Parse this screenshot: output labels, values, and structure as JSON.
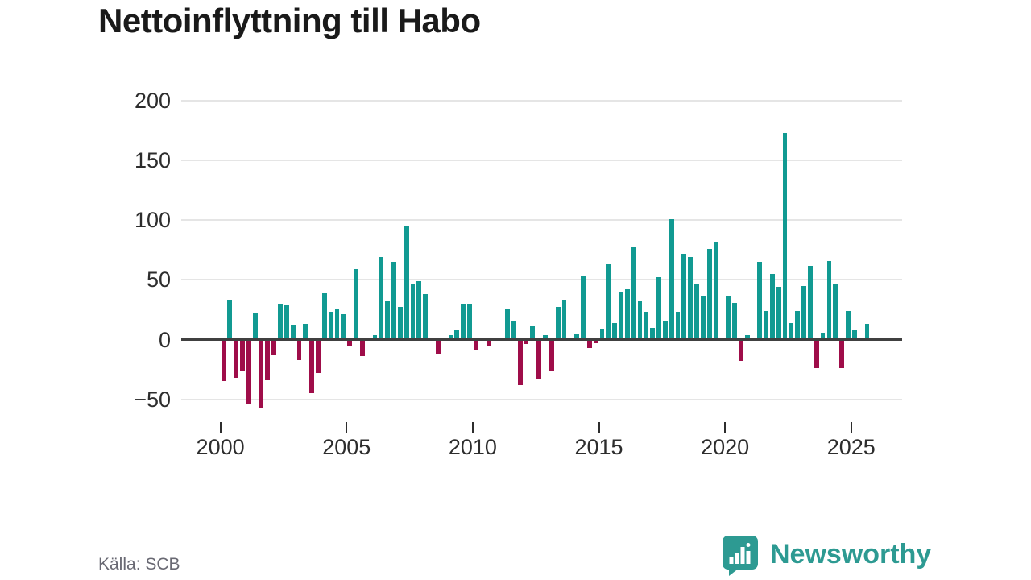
{
  "title": "Nettoinflyttning till Habo",
  "source": "Källa: SCB",
  "branding": {
    "name": "Newsworthy",
    "icon": "newsworthy-speech-bubble-bar-chart-icon",
    "color": "#2d9a92"
  },
  "colors": {
    "positive_bar": "#119a92",
    "negative_bar": "#9f0d49",
    "axis": "#404040",
    "grid": "#e5e5e5",
    "tick": "#2d2d2d",
    "label": "#2d2d2d",
    "title": "#1a1a1a",
    "source_text": "#696973",
    "brand": "#2d9a92"
  },
  "chart_data": {
    "type": "bar",
    "title": "Nettoinflyttning till Habo",
    "xlabel": "",
    "ylabel": "",
    "x_unit": "quarter",
    "start": "2000-Q1",
    "end": "2025-Q3",
    "quarters_per_year": 4,
    "y_ticks": [
      200,
      150,
      100,
      50,
      0,
      -50
    ],
    "y_tick_labels": [
      "200",
      "150",
      "100",
      "50",
      "0",
      "−50"
    ],
    "x_tick_years": [
      "2000",
      "2005",
      "2010",
      "2015",
      "2020",
      "2025"
    ],
    "ylim": [
      -62,
      215
    ],
    "grid": "horizontal",
    "legend": "none",
    "values": [
      -35,
      33,
      -32,
      -26,
      -54,
      22,
      -57,
      -34,
      -13,
      30,
      29,
      12,
      -17,
      13,
      -45,
      -28,
      39,
      23,
      26,
      21,
      -6,
      59,
      -14,
      0,
      4,
      69,
      32,
      65,
      27,
      95,
      47,
      49,
      38,
      0,
      -12,
      0,
      4,
      8,
      30,
      30,
      -9,
      0,
      -6,
      0,
      0,
      25,
      15,
      -38,
      -4,
      11,
      -33,
      4,
      -26,
      27,
      33,
      0,
      5,
      53,
      -7,
      -3,
      9,
      63,
      14,
      40,
      42,
      77,
      32,
      23,
      10,
      52,
      15,
      101,
      23,
      72,
      69,
      46,
      36,
      76,
      82,
      0,
      37,
      31,
      -18,
      4,
      0,
      65,
      24,
      55,
      44,
      173,
      14,
      24,
      45,
      62,
      -24,
      6,
      66,
      46,
      -24,
      24,
      8,
      0,
      13
    ]
  }
}
